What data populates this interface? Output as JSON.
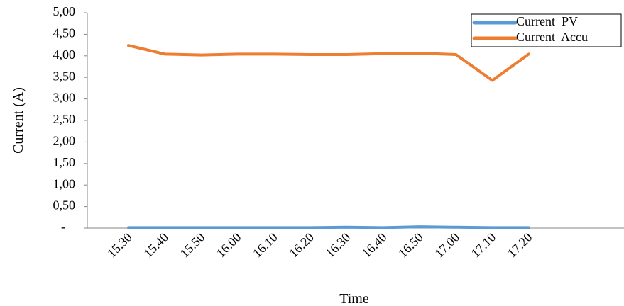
{
  "chart_data": {
    "type": "line",
    "xlabel": "Time",
    "ylabel": "Current (A)",
    "categories": [
      "15.30",
      "15.40",
      "15.50",
      "16.00",
      "16.10",
      "16.20",
      "16.30",
      "16.40",
      "16.50",
      "17.00",
      "17.10",
      "17.20"
    ],
    "y_tick_labels": [
      "-",
      "0,50",
      "1,00",
      "1,50",
      "2,00",
      "2,50",
      "3,00",
      "3,50",
      "4,00",
      "4,50",
      "5,00"
    ],
    "ylim": [
      0,
      5
    ],
    "grid": false,
    "legend_position": "top-right",
    "series": [
      {
        "name": "Current  PV",
        "color": "#5b9bd5",
        "values": [
          0.01,
          0.01,
          0.01,
          0.01,
          0.01,
          0.01,
          0.02,
          0.01,
          0.03,
          0.02,
          0.01,
          0.01
        ]
      },
      {
        "name": "Current  Accu",
        "color": "#ed7d31",
        "values": [
          4.24,
          4.04,
          4.02,
          4.04,
          4.04,
          4.03,
          4.03,
          4.05,
          4.06,
          4.03,
          3.43,
          4.04
        ]
      }
    ]
  }
}
